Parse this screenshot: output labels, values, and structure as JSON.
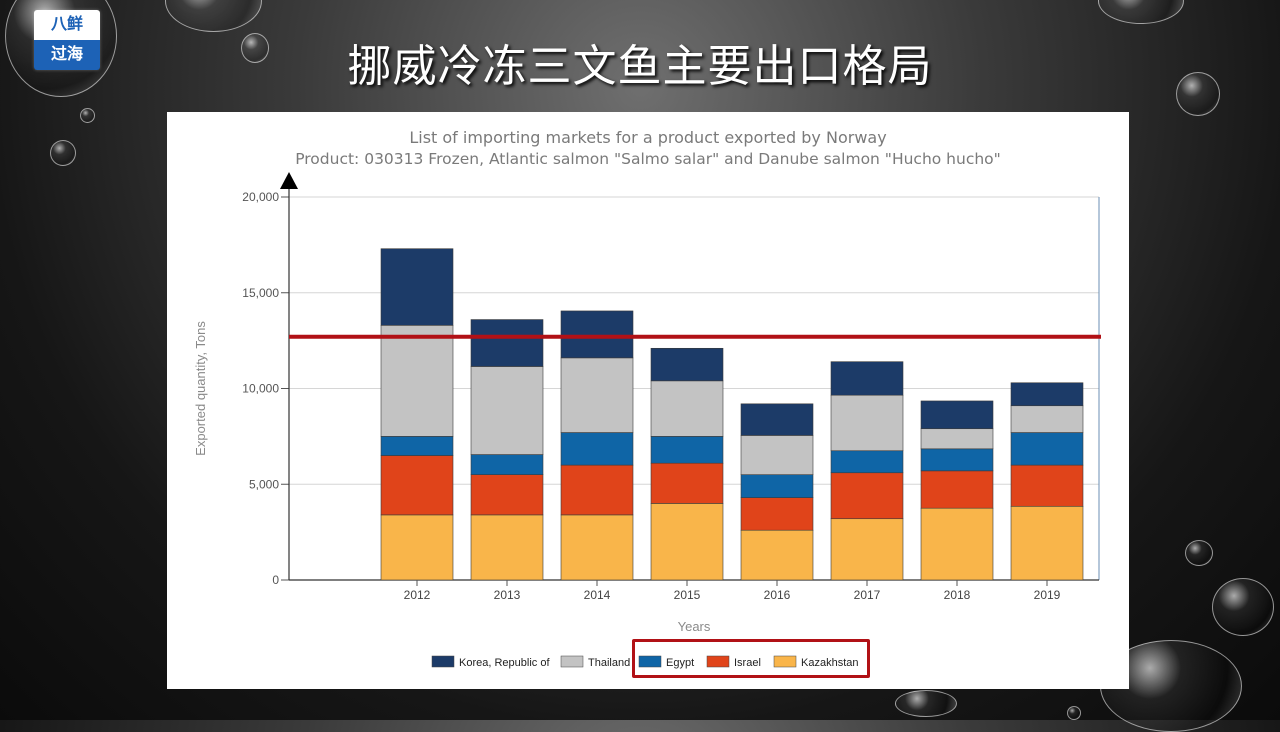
{
  "slide": {
    "title": "挪威冷冻三文鱼主要出口格局",
    "logo_top": "八鲜",
    "logo_bottom": "过海"
  },
  "chart_data": {
    "type": "bar",
    "stacked": true,
    "title": "List of importing markets for a product exported by Norway",
    "subtitle": "Product: 030313 Frozen, Atlantic salmon \"Salmo salar\" and Danube salmon \"Hucho hucho\"",
    "xlabel": "Years",
    "ylabel": "Exported quantity, Tons",
    "categories": [
      "2012",
      "2013",
      "2014",
      "2015",
      "2016",
      "2017",
      "2018",
      "2019"
    ],
    "ylim": [
      0,
      20000
    ],
    "yticks": [
      0,
      5000,
      10000,
      15000,
      20000
    ],
    "ytick_labels": [
      "0",
      "5,000",
      "10,000",
      "15,000",
      "20,000"
    ],
    "series": [
      {
        "name": "Kazakhstan",
        "color": "#f9b54a",
        "values": [
          3400,
          3400,
          3400,
          4000,
          2600,
          3200,
          3750,
          3850
        ]
      },
      {
        "name": "Israel",
        "color": "#e0441a",
        "values": [
          3100,
          2100,
          2600,
          2100,
          1700,
          2400,
          1950,
          2150
        ]
      },
      {
        "name": "Egypt",
        "color": "#0f65a6",
        "values": [
          1000,
          1050,
          1700,
          1400,
          1200,
          1150,
          1150,
          1700
        ]
      },
      {
        "name": "Thailand",
        "color": "#c3c3c3",
        "values": [
          5800,
          4600,
          3900,
          2900,
          2050,
          2900,
          1050,
          1400
        ]
      },
      {
        "name": "Korea, Republic of",
        "color": "#1c3b68",
        "values": [
          4000,
          2450,
          2450,
          1700,
          1650,
          1750,
          1450,
          1200
        ]
      }
    ],
    "legend_order": [
      "Korea, Republic of",
      "Thailand",
      "Egypt",
      "Israel",
      "Kazakhstan"
    ],
    "legend_position": "bottom",
    "annotation_line": {
      "value": 12700,
      "color": "#b11116"
    },
    "grid": true
  }
}
